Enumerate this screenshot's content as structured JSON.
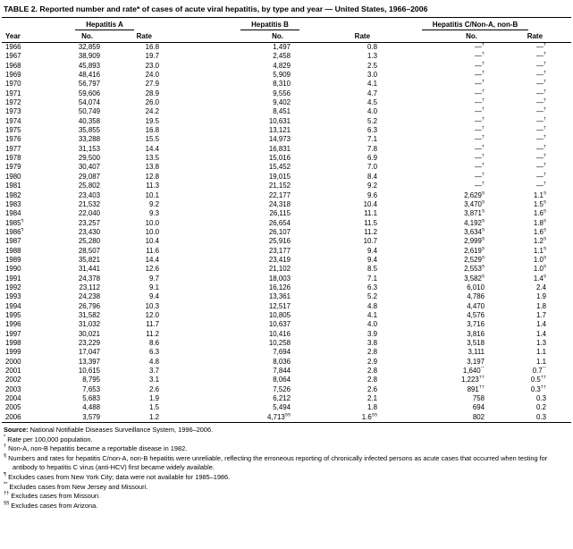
{
  "title": "TABLE 2. Reported number and rate* of cases of acute viral hepatitis, by type and year — United States, 1966–2006",
  "table": {
    "group_headers": [
      "Hepatitis A",
      "Hepatitis B",
      "Hepatitis C/Non-A, non-B"
    ],
    "col_headers": [
      "Year",
      "No.",
      "Rate",
      "No.",
      "Rate",
      "No.",
      "Rate"
    ],
    "rows": [
      [
        "1966",
        "32,859",
        "16.8",
        "1,497",
        "0.8",
        "—†",
        "—†"
      ],
      [
        "1967",
        "38,909",
        "19.7",
        "2,458",
        "1.3",
        "—†",
        "—†"
      ],
      [
        "1968",
        "45,893",
        "23.0",
        "4,829",
        "2.5",
        "—†",
        "—†"
      ],
      [
        "1969",
        "48,416",
        "24.0",
        "5,909",
        "3.0",
        "—†",
        "—†"
      ],
      [
        "1970",
        "56,797",
        "27.9",
        "8,310",
        "4.1",
        "—†",
        "—†"
      ],
      [
        "1971",
        "59,606",
        "28.9",
        "9,556",
        "4.7",
        "—†",
        "—†"
      ],
      [
        "1972",
        "54,074",
        "26.0",
        "9,402",
        "4.5",
        "—†",
        "—†"
      ],
      [
        "1973",
        "50,749",
        "24.2",
        "8,451",
        "4.0",
        "—†",
        "—†"
      ],
      [
        "1974",
        "40,358",
        "19.5",
        "10,631",
        "5.2",
        "—†",
        "—†"
      ],
      [
        "1975",
        "35,855",
        "16.8",
        "13,121",
        "6.3",
        "—†",
        "—†"
      ],
      [
        "1976",
        "33,288",
        "15.5",
        "14,973",
        "7.1",
        "—†",
        "—†"
      ],
      [
        "1977",
        "31,153",
        "14.4",
        "16,831",
        "7.8",
        "—†",
        "—†"
      ],
      [
        "1978",
        "29,500",
        "13.5",
        "15,016",
        "6.9",
        "—†",
        "—†"
      ],
      [
        "1979",
        "30,407",
        "13.8",
        "15,452",
        "7.0",
        "—†",
        "—†"
      ],
      [
        "1980",
        "29,087",
        "12.8",
        "19,015",
        "8.4",
        "—†",
        "—†"
      ],
      [
        "1981",
        "25,802",
        "11.3",
        "21,152",
        "9.2",
        "—†",
        "—†"
      ],
      [
        "1982",
        "23,403",
        "10.1",
        "22,177",
        "9.6",
        "2,629§",
        "1.1§"
      ],
      [
        "1983",
        "21,532",
        "9.2",
        "24,318",
        "10.4",
        "3,470§",
        "1.5§"
      ],
      [
        "1984",
        "22,040",
        "9.3",
        "26,115",
        "11.1",
        "3,871§",
        "1.6§"
      ],
      [
        "1985¶",
        "23,257",
        "10.0",
        "26,654",
        "11.5",
        "4,192§",
        "1.8§"
      ],
      [
        "1986¶",
        "23,430",
        "10.0",
        "26,107",
        "11.2",
        "3,634§",
        "1.6§"
      ],
      [
        "1987",
        "25,280",
        "10.4",
        "25,916",
        "10.7",
        "2,999§",
        "1.2§"
      ],
      [
        "1988",
        "28,507",
        "11.6",
        "23,177",
        "9.4",
        "2,619§",
        "1.1§"
      ],
      [
        "1989",
        "35,821",
        "14.4",
        "23,419",
        "9.4",
        "2,529§",
        "1.0§"
      ],
      [
        "1990",
        "31,441",
        "12.6",
        "21,102",
        "8.5",
        "2,553§",
        "1.0§"
      ],
      [
        "1991",
        "24,378",
        "9.7",
        "18,003",
        "7.1",
        "3,582§",
        "1.4§"
      ],
      [
        "1992",
        "23,112",
        "9.1",
        "16,126",
        "6.3",
        "6,010",
        "2.4"
      ],
      [
        "1993",
        "24,238",
        "9.4",
        "13,361",
        "5.2",
        "4,786",
        "1.9"
      ],
      [
        "1994",
        "26,796",
        "10.3",
        "12,517",
        "4.8",
        "4,470",
        "1.8"
      ],
      [
        "1995",
        "31,582",
        "12.0",
        "10,805",
        "4.1",
        "4,576",
        "1.7"
      ],
      [
        "1996",
        "31,032",
        "11.7",
        "10,637",
        "4.0",
        "3,716",
        "1.4"
      ],
      [
        "1997",
        "30,021",
        "11.2",
        "10,416",
        "3.9",
        "3,816",
        "1.4"
      ],
      [
        "1998",
        "23,229",
        "8.6",
        "10,258",
        "3.8",
        "3,518",
        "1.3"
      ],
      [
        "1999",
        "17,047",
        "6.3",
        "7,694",
        "2.8",
        "3,111",
        "1.1"
      ],
      [
        "2000",
        "13,397",
        "4.8",
        "8,036",
        "2.9",
        "3,197",
        "1.1"
      ],
      [
        "2001",
        "10,615",
        "3.7",
        "7,844",
        "2.8",
        "1,640**",
        "0.7**"
      ],
      [
        "2002",
        "8,795",
        "3.1",
        "8,064",
        "2.8",
        "1,223††",
        "0.5††"
      ],
      [
        "2003",
        "7,653",
        "2.6",
        "7,526",
        "2.6",
        "891††",
        "0.3††"
      ],
      [
        "2004",
        "5,683",
        "1.9",
        "6,212",
        "2.1",
        "758",
        "0.3"
      ],
      [
        "2005",
        "4,488",
        "1.5",
        "5,494",
        "1.8",
        "694",
        "0.2"
      ],
      [
        "2006",
        "3,579",
        "1.2",
        "4,713§§",
        "1.6§§",
        "802",
        "0.3"
      ]
    ]
  },
  "footer": {
    "source_label": "Source:",
    "source_text": "National Notifiable Diseases Surveillance System, 1996–2006.",
    "footnotes": [
      {
        "marker": "*",
        "text": "Rate per 100,000 population."
      },
      {
        "marker": "†",
        "text": "Non-A, non-B hepatitis became a reportable disease in 1982."
      },
      {
        "marker": "§",
        "text": "Numbers and rates for hepatitis C/non-A, non-B hepatitis were unreliable, reflecting the erroneous reporting of chronically infected persons as acute cases that occurred when testing for antibody to hepatitis C virus (anti-HCV) first became widely available."
      },
      {
        "marker": "¶",
        "text": "Excludes cases from New York City; data were not available for 1985–1986."
      },
      {
        "marker": "**",
        "text": "Excludes cases from New Jersey and Missouri."
      },
      {
        "marker": "††",
        "text": "Excludes cases from Missouri."
      },
      {
        "marker": "§§",
        "text": "Excludes cases from Arizona."
      }
    ]
  }
}
